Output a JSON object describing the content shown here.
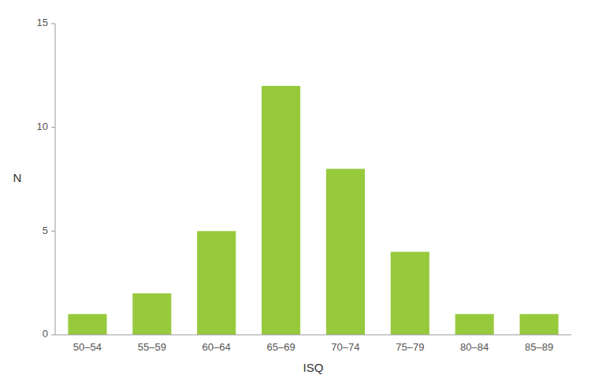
{
  "chart_data": {
    "type": "bar",
    "xlabel": "ISQ",
    "ylabel": "N",
    "categories": [
      "50–54",
      "55–59",
      "60–64",
      "65–69",
      "70–74",
      "75–79",
      "80–84",
      "85–89"
    ],
    "values": [
      1,
      2,
      5,
      12,
      8,
      4,
      1,
      1
    ],
    "color": "#97C93D",
    "ylim": [
      0,
      15
    ],
    "yticks": [
      0,
      5,
      10,
      15
    ],
    "grid": false
  }
}
